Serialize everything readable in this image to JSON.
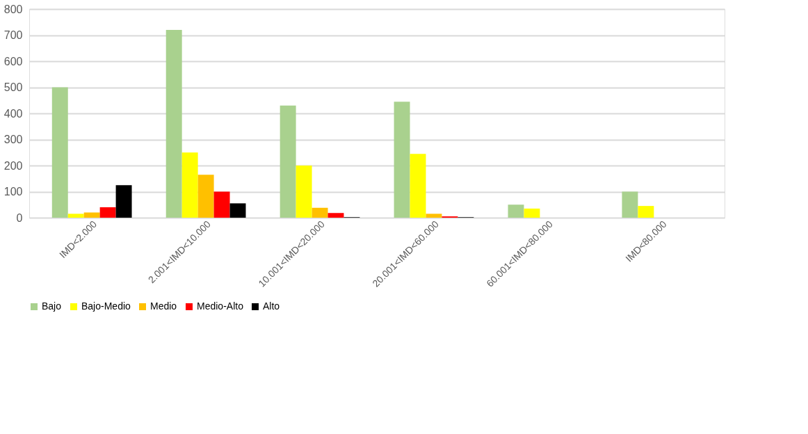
{
  "chart_data": {
    "type": "bar",
    "categories": [
      "IMD<2.000",
      "2.001<IMD<10.000",
      "10.001<IMD<20.000",
      "20.001<IMD<60.000",
      "60.001<IMD<80.000",
      "IMD<80.000"
    ],
    "series": [
      {
        "name": "Bajo",
        "color": "#a9d18e",
        "values": [
          500,
          720,
          430,
          445,
          50,
          100
        ]
      },
      {
        "name": "Bajo-Medio",
        "color": "#ffff00",
        "values": [
          15,
          250,
          200,
          245,
          35,
          45
        ]
      },
      {
        "name": "Medio",
        "color": "#ffc000",
        "values": [
          20,
          165,
          38,
          15,
          null,
          null
        ]
      },
      {
        "name": "Medio-Alto",
        "color": "#ff0000",
        "values": [
          40,
          100,
          18,
          5,
          null,
          null
        ]
      },
      {
        "name": "Alto",
        "color": "#000000",
        "values": [
          125,
          55,
          2,
          2,
          null,
          null
        ]
      }
    ],
    "ylim": [
      0,
      800
    ],
    "yticks": [
      0,
      100,
      200,
      300,
      400,
      500,
      600,
      700,
      800
    ],
    "grid": "y",
    "legend": "bottom"
  }
}
